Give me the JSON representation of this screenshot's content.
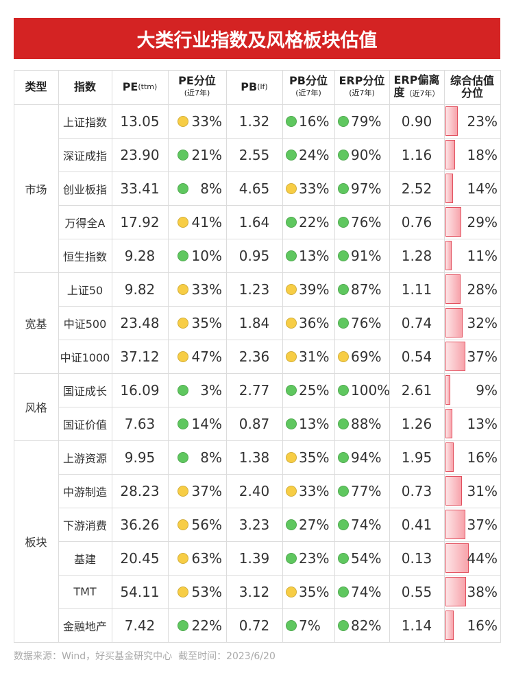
{
  "title": "大类行业指数及风格板块估值",
  "header": {
    "type": "类型",
    "index": "指数",
    "pe": "PE",
    "pe_unit": "(ttm)",
    "pe_pct": "PE分位",
    "pe_pct_sub": "(近7年)",
    "pb": "PB",
    "pb_unit": "(lf)",
    "pb_pct": "PB分位",
    "pb_pct_sub": "(近7年)",
    "erp_pct": "ERP分位",
    "erp_pct_sub": "(近7年)",
    "erp_dev": "ERP偏离",
    "erp_dev_2": "度",
    "erp_dev_sub": "（近7年）",
    "composite": "综合估值",
    "composite_2": "分位"
  },
  "dot_colors": {
    "green": "#5fc75f",
    "yellow": "#f7cd45"
  },
  "groups": [
    {
      "name": "市场",
      "rows": [
        {
          "name": "上证指数",
          "pe": "13.05",
          "pe_pct": "33%",
          "pe_dot": "yellow",
          "pb": "1.32",
          "pb_pct": "16%",
          "pb_dot": "green",
          "erp_pct": "79%",
          "erp_dot": "green",
          "erp_dev": "0.90",
          "composite": 23,
          "composite_label": "23%"
        },
        {
          "name": "深证成指",
          "pe": "23.90",
          "pe_pct": "21%",
          "pe_dot": "green",
          "pb": "2.55",
          "pb_pct": "24%",
          "pb_dot": "green",
          "erp_pct": "90%",
          "erp_dot": "green",
          "erp_dev": "1.16",
          "composite": 18,
          "composite_label": "18%"
        },
        {
          "name": "创业板指",
          "pe": "33.41",
          "pe_pct": "8%",
          "pe_dot": "green",
          "pb": "4.65",
          "pb_pct": "33%",
          "pb_dot": "yellow",
          "erp_pct": "97%",
          "erp_dot": "green",
          "erp_dev": "2.52",
          "composite": 14,
          "composite_label": "14%"
        },
        {
          "name": "万得全A",
          "pe": "17.92",
          "pe_pct": "41%",
          "pe_dot": "yellow",
          "pb": "1.64",
          "pb_pct": "22%",
          "pb_dot": "green",
          "erp_pct": "76%",
          "erp_dot": "green",
          "erp_dev": "0.76",
          "composite": 29,
          "composite_label": "29%"
        },
        {
          "name": "恒生指数",
          "pe": "9.28",
          "pe_pct": "10%",
          "pe_dot": "green",
          "pb": "0.95",
          "pb_pct": "13%",
          "pb_dot": "green",
          "erp_pct": "91%",
          "erp_dot": "green",
          "erp_dev": "1.28",
          "composite": 11,
          "composite_label": "11%"
        }
      ]
    },
    {
      "name": "宽基",
      "rows": [
        {
          "name": "上证50",
          "pe": "9.82",
          "pe_pct": "33%",
          "pe_dot": "yellow",
          "pb": "1.23",
          "pb_pct": "39%",
          "pb_dot": "yellow",
          "erp_pct": "87%",
          "erp_dot": "green",
          "erp_dev": "1.11",
          "composite": 28,
          "composite_label": "28%"
        },
        {
          "name": "中证500",
          "pe": "23.48",
          "pe_pct": "35%",
          "pe_dot": "yellow",
          "pb": "1.84",
          "pb_pct": "36%",
          "pb_dot": "yellow",
          "erp_pct": "76%",
          "erp_dot": "green",
          "erp_dev": "0.74",
          "composite": 32,
          "composite_label": "32%"
        },
        {
          "name": "中证1000",
          "pe": "37.12",
          "pe_pct": "47%",
          "pe_dot": "yellow",
          "pb": "2.36",
          "pb_pct": "31%",
          "pb_dot": "yellow",
          "erp_pct": "69%",
          "erp_dot": "yellow",
          "erp_dev": "0.54",
          "composite": 37,
          "composite_label": "37%"
        }
      ]
    },
    {
      "name": "风格",
      "rows": [
        {
          "name": "国证成长",
          "pe": "16.09",
          "pe_pct": "3%",
          "pe_dot": "green",
          "pb": "2.77",
          "pb_pct": "25%",
          "pb_dot": "green",
          "erp_pct": "100%",
          "erp_dot": "green",
          "erp_dev": "2.61",
          "composite": 9,
          "composite_label": "9%"
        },
        {
          "name": "国证价值",
          "pe": "7.63",
          "pe_pct": "14%",
          "pe_dot": "green",
          "pb": "0.87",
          "pb_pct": "13%",
          "pb_dot": "green",
          "erp_pct": "88%",
          "erp_dot": "green",
          "erp_dev": "1.26",
          "composite": 13,
          "composite_label": "13%"
        }
      ]
    },
    {
      "name": "板块",
      "rows": [
        {
          "name": "上游资源",
          "pe": "9.95",
          "pe_pct": "8%",
          "pe_dot": "green",
          "pb": "1.38",
          "pb_pct": "35%",
          "pb_dot": "yellow",
          "erp_pct": "94%",
          "erp_dot": "green",
          "erp_dev": "1.95",
          "composite": 16,
          "composite_label": "16%"
        },
        {
          "name": "中游制造",
          "pe": "28.23",
          "pe_pct": "37%",
          "pe_dot": "yellow",
          "pb": "2.40",
          "pb_pct": "33%",
          "pb_dot": "yellow",
          "erp_pct": "77%",
          "erp_dot": "green",
          "erp_dev": "0.73",
          "composite": 31,
          "composite_label": "31%"
        },
        {
          "name": "下游消费",
          "pe": "36.26",
          "pe_pct": "56%",
          "pe_dot": "yellow",
          "pb": "3.23",
          "pb_pct": "27%",
          "pb_dot": "green",
          "erp_pct": "74%",
          "erp_dot": "green",
          "erp_dev": "0.41",
          "composite": 37,
          "composite_label": "37%"
        },
        {
          "name": "基建",
          "pe": "20.45",
          "pe_pct": "63%",
          "pe_dot": "yellow",
          "pb": "1.39",
          "pb_pct": "23%",
          "pb_dot": "green",
          "erp_pct": "54%",
          "erp_dot": "green",
          "erp_dev": "0.13",
          "composite": 44,
          "composite_label": "44%"
        },
        {
          "name": "TMT",
          "pe": "54.11",
          "pe_pct": "53%",
          "pe_dot": "yellow",
          "pb": "3.12",
          "pb_pct": "35%",
          "pb_dot": "yellow",
          "erp_pct": "74%",
          "erp_dot": "green",
          "erp_dev": "0.55",
          "composite": 38,
          "composite_label": "38%"
        },
        {
          "name": "金融地产",
          "pe": "7.42",
          "pe_pct": "22%",
          "pe_dot": "green",
          "pb": "0.72",
          "pb_pct": "7%",
          "pb_dot": "green",
          "erp_pct": "82%",
          "erp_dot": "green",
          "erp_dev": "1.14",
          "composite": 16,
          "composite_label": "16%"
        }
      ]
    }
  ],
  "footer": "数据来源：Wind，好买基金研究中心  截至时间：2023/6/20"
}
